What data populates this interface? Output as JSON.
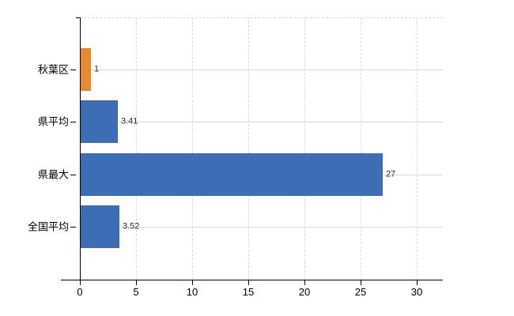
{
  "chart_data": {
    "type": "bar",
    "orientation": "horizontal",
    "title": "",
    "xlabel": "",
    "ylabel": "",
    "categories": [
      "秋葉区",
      "県平均",
      "県最大",
      "全国平均"
    ],
    "values": [
      1,
      3.41,
      27,
      3.52
    ],
    "value_labels": [
      "1",
      "3.41",
      "27",
      "3.52"
    ],
    "bar_colors": [
      "#e9892f",
      "#3c6db5",
      "#3c6db5",
      "#3c6db5"
    ],
    "xlim": [
      0,
      32.3
    ],
    "xticks": [
      0,
      5,
      10,
      15,
      20,
      25,
      30
    ],
    "xtick_labels": [
      "0",
      "5",
      "10",
      "15",
      "20",
      "25",
      "30"
    ],
    "grid": true,
    "legend": false,
    "colors": {
      "axis": "#000000",
      "grid_vertical_dashed": "#d9d9d9",
      "grid_horizontal": "#d5dbd5",
      "value_label": "#2e2e2e",
      "tick_label": "#000000",
      "background": "#ffffff"
    }
  }
}
